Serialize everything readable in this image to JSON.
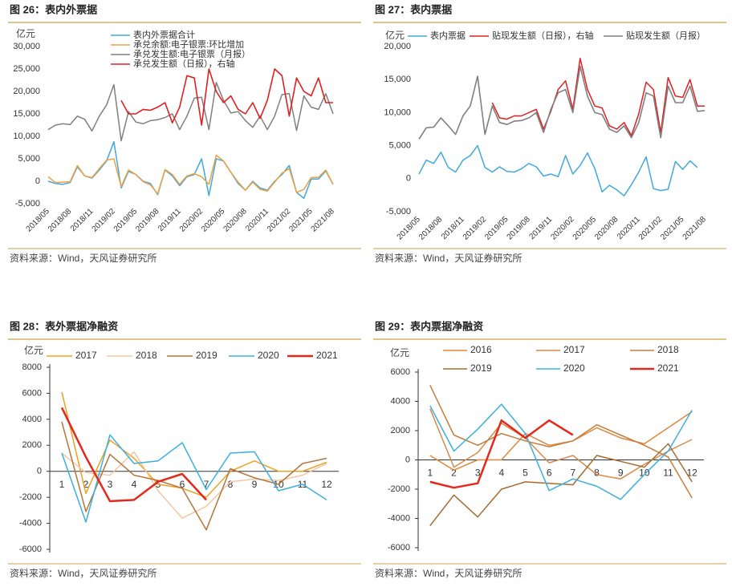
{
  "chart_data": [
    {
      "type": "line",
      "title": "图 26：表内外票据",
      "y_label": "亿元",
      "source": "资料来源：Wind，天风证券研究所",
      "categories": [
        "2018/05",
        null,
        null,
        "2018/08",
        null,
        null,
        "2018/11",
        null,
        null,
        "2019/02",
        null,
        null,
        "2019/05",
        null,
        null,
        "2019/08",
        null,
        null,
        "2019/11",
        null,
        null,
        "2020/02",
        null,
        null,
        "2020/05",
        null,
        null,
        "2020/08",
        null,
        null,
        "2020/11",
        null,
        null,
        "2021/02",
        null,
        null,
        "2021/05",
        null,
        null,
        "2021/08"
      ],
      "ylim": [
        -5000,
        30000
      ],
      "yticks": [
        {
          "value": -5000,
          "label": "-5,000"
        },
        0,
        {
          "value": 5000,
          "label": "5,000"
        },
        {
          "value": 10000,
          "label": "10,000"
        },
        {
          "value": 15000,
          "label": "15,000"
        },
        {
          "value": 20000,
          "label": "20,000"
        },
        {
          "value": 25000,
          "label": "25,000"
        },
        {
          "value": 30000,
          "label": "30,000"
        }
      ],
      "series": [
        {
          "name": "表内外票据合计",
          "color": "#3fa9e0",
          "values": [
            0,
            -500,
            -700,
            -300,
            3200,
            1200,
            700,
            2500,
            4500,
            8800,
            -1500,
            2200,
            1500,
            0,
            -500,
            -3000,
            2500,
            1200,
            -1000,
            1000,
            1500,
            5000,
            -3200,
            5000,
            4500,
            2000,
            -500,
            -2000,
            0,
            -1500,
            -2000,
            0,
            1500,
            3500,
            -2500,
            -3800,
            500,
            500,
            2300,
            -700
          ]
        },
        {
          "name": "承兑余额:电子银票:环比增加",
          "color": "#f0a040",
          "values": [
            1000,
            -300,
            -200,
            -100,
            3500,
            1200,
            800,
            2800,
            4700,
            5000,
            -1200,
            2500,
            1500,
            -100,
            -800,
            -2800,
            2600,
            1500,
            -700,
            1200,
            1700,
            1000,
            -700,
            5800,
            4500,
            2000,
            -200,
            -2000,
            -200,
            -1800,
            -2200,
            -200,
            1800,
            2800,
            -2500,
            -1800,
            800,
            900,
            2500,
            -700
          ]
        },
        {
          "name": "承兑发生额:电子银票（月报）",
          "color": "#808080",
          "values": [
            11500,
            12500,
            12800,
            12600,
            14500,
            13800,
            11200,
            14500,
            17000,
            21500,
            9000,
            15500,
            13200,
            12800,
            13500,
            13700,
            14200,
            15000,
            11500,
            14500,
            18500,
            18700,
            11500,
            22000,
            18000,
            15200,
            15500,
            13500,
            12000,
            14500,
            11500,
            14500,
            19300,
            19500,
            11300,
            19000,
            16500,
            16000,
            19500,
            15000
          ]
        },
        {
          "name": "承兑发生额（日报），右轴",
          "color": "#e02020",
          "values": [
            null,
            null,
            null,
            null,
            null,
            null,
            null,
            null,
            null,
            null,
            18000,
            15000,
            15000,
            16000,
            15800,
            16500,
            17500,
            13000,
            16500,
            23500,
            23000,
            12500,
            25000,
            20000,
            17500,
            19000,
            16000,
            15000,
            17500,
            14000,
            18000,
            25000,
            23500,
            14500,
            23000,
            20000,
            19000,
            23000,
            17500,
            17500
          ]
        }
      ]
    },
    {
      "type": "line",
      "title": "图 27：表内票据",
      "y_label": "亿元",
      "source": "资料来源：Wind，天风证券研究所",
      "categories": [
        "2018/05",
        null,
        null,
        "2018/08",
        null,
        null,
        "2018/11",
        null,
        null,
        "2019/02",
        null,
        null,
        "2019/05",
        null,
        null,
        "2019/08",
        null,
        null,
        "2019/11",
        null,
        null,
        "2020/02",
        null,
        null,
        "2020/05",
        null,
        null,
        "2020/08",
        null,
        null,
        "2020/11",
        null,
        null,
        "2021/02",
        null,
        null,
        "2021/05",
        null,
        null,
        "2021/08"
      ],
      "ylim": [
        -5000,
        20000
      ],
      "yticks": [
        {
          "value": -5000,
          "label": "-5,000"
        },
        0,
        {
          "value": 5000,
          "label": "5,000"
        },
        {
          "value": 10000,
          "label": "10,000"
        },
        {
          "value": 15000,
          "label": "15,000"
        },
        {
          "value": 20000,
          "label": "20,000"
        }
      ],
      "series": [
        {
          "name": "表内票据",
          "color": "#3fa9e0",
          "values": [
            700,
            2800,
            2300,
            4000,
            1700,
            1000,
            2800,
            3500,
            5000,
            1700,
            1000,
            1800,
            1100,
            1000,
            1500,
            2300,
            1800,
            400,
            700,
            300,
            3500,
            700,
            2000,
            3900,
            1500,
            -2000,
            -1000,
            -1700,
            -2600,
            -900,
            1000,
            3300,
            -1500,
            -1800,
            -1600,
            2600,
            1400,
            2700,
            1700,
            null
          ]
        },
        {
          "name": "贴现发生额（日报），右轴",
          "color": "#e02020",
          "values": [
            null,
            null,
            null,
            null,
            null,
            null,
            null,
            null,
            null,
            null,
            11500,
            9200,
            9000,
            9500,
            9500,
            10000,
            10500,
            7500,
            10200,
            13500,
            14800,
            10500,
            18200,
            13500,
            11000,
            10700,
            8000,
            7500,
            8500,
            6500,
            9800,
            14600,
            13500,
            7000,
            15300,
            12500,
            12300,
            15000,
            11000,
            11000
          ]
        },
        {
          "name": "贴现发生额（月报）",
          "color": "#808080",
          "values": [
            6000,
            7700,
            7800,
            9200,
            8000,
            6700,
            9500,
            11000,
            15500,
            6700,
            11000,
            8500,
            8200,
            8700,
            8800,
            9200,
            10000,
            7000,
            10500,
            13000,
            13500,
            10000,
            17000,
            12500,
            10000,
            9700,
            7500,
            7000,
            8000,
            6200,
            8500,
            13000,
            12500,
            6200,
            14000,
            11500,
            11500,
            14000,
            10200,
            10300
          ]
        }
      ]
    },
    {
      "type": "line",
      "title": "图 28：表外票据净融资",
      "y_label": "亿元",
      "source": "资料来源：Wind，天风证券研究所",
      "categories": [
        "1",
        "2",
        "3",
        "4",
        "5",
        "6",
        "7",
        "8",
        "9",
        "10",
        "11",
        "12"
      ],
      "zero_line": true,
      "ylim": [
        -6000,
        8000
      ],
      "yticks": [
        -6000,
        -4000,
        -2000,
        0,
        2000,
        4000,
        6000,
        8000
      ],
      "series": [
        {
          "name": "2017",
          "color": "#f0a020",
          "values": [
            6100,
            -1700,
            2400,
            1000,
            -1000,
            -1300,
            -2000,
            0,
            800,
            0,
            0,
            700
          ]
        },
        {
          "name": "2018",
          "color": "#f5c6a5",
          "values": [
            1400,
            -100,
            -300,
            1500,
            -1500,
            -3600,
            -2700,
            -800,
            -600,
            -700,
            -300,
            600
          ]
        },
        {
          "name": "2019",
          "color": "#b5743a",
          "values": [
            3800,
            -3100,
            1300,
            -300,
            -700,
            -1300,
            -4500,
            200,
            -500,
            -1000,
            600,
            1000
          ]
        },
        {
          "name": "2020",
          "color": "#3bb0e0",
          "values": [
            1400,
            -3900,
            2800,
            600,
            800,
            2200,
            -1400,
            1400,
            1500,
            -1500,
            -1000,
            -2200
          ]
        },
        {
          "name": "2021",
          "color": "#e5281c",
          "values": [
            4900,
            1100,
            -2300,
            -2200,
            -800,
            -200,
            -2200,
            null,
            null,
            null,
            null,
            null
          ]
        }
      ]
    },
    {
      "type": "line",
      "title": "图 29：表内票据净融资",
      "y_label": "亿元",
      "source": "资料来源：Wind，天风证券研究所",
      "categories": [
        "1",
        "2",
        "3",
        "4",
        "5",
        "6",
        "7",
        "8",
        "9",
        "10",
        "11",
        "12"
      ],
      "zero_line": true,
      "ylim": [
        -6000,
        6000
      ],
      "yticks": [
        -6000,
        -4000,
        -2000,
        0,
        2000,
        4000,
        6000
      ],
      "series": [
        {
          "name": "2016",
          "color": "#e0883a",
          "values": [
            300,
            -700,
            0,
            0,
            1800,
            1000,
            1300,
            2200,
            1500,
            1100,
            2200,
            3300
          ]
        },
        {
          "name": "2017",
          "color": "#d9894a",
          "values": [
            3500,
            -500,
            500,
            2500,
            1500,
            -200,
            300,
            -1000,
            -1300,
            -300,
            600,
            1400
          ]
        },
        {
          "name": "2018",
          "color": "#c67d3c",
          "values": [
            5100,
            1700,
            1000,
            1800,
            1300,
            900,
            1300,
            2400,
            1700,
            1000,
            200,
            -2600
          ]
        },
        {
          "name": "2019",
          "color": "#a86b2e",
          "values": [
            -4500,
            -2400,
            -3900,
            -2000,
            -1500,
            -1600,
            -1700,
            300,
            -100,
            -500,
            1100,
            -1500
          ]
        },
        {
          "name": "2020",
          "color": "#3bb0e0",
          "values": [
            3700,
            600,
            2100,
            3800,
            1800,
            -2100,
            -1300,
            -1800,
            -2700,
            -1000,
            600,
            3400
          ]
        },
        {
          "name": "2021",
          "color": "#e5281c",
          "values": [
            -1500,
            -1900,
            -1600,
            2700,
            1500,
            2700,
            1700,
            null,
            null,
            null,
            null,
            null
          ]
        }
      ]
    }
  ]
}
